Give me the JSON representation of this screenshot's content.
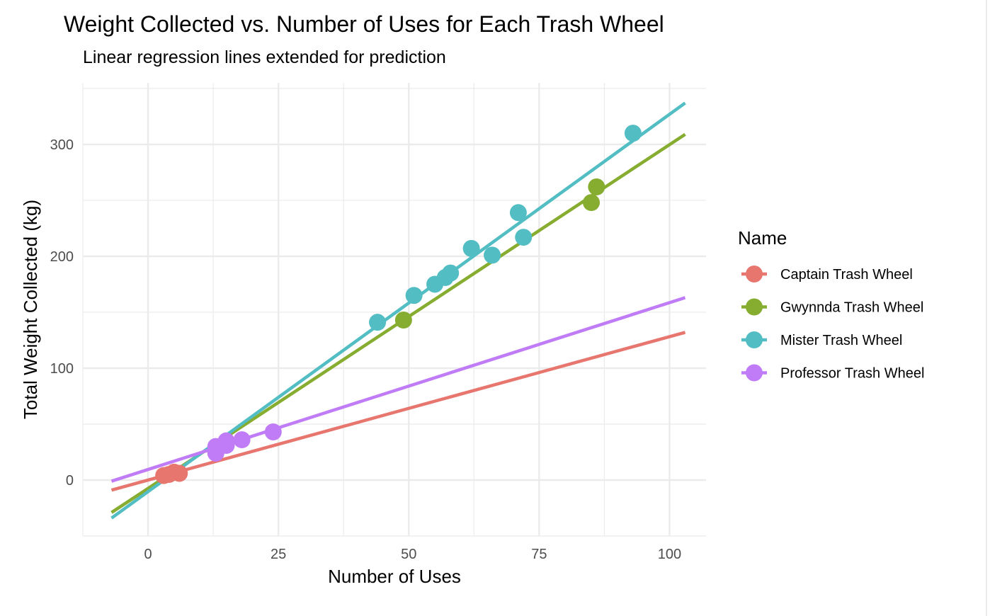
{
  "chart_data": {
    "type": "scatter",
    "title": "Weight Collected vs. Number of Uses for Each Trash Wheel",
    "subtitle": "Linear regression lines extended for prediction",
    "xlabel": "Number of Uses",
    "ylabel": "Total Weight Collected (kg)",
    "xlim": [
      -12.5,
      107
    ],
    "ylim": [
      -50,
      355
    ],
    "x_ticks": [
      0,
      25,
      50,
      75,
      100
    ],
    "y_ticks": [
      0,
      100,
      200,
      300
    ],
    "grid": true,
    "legend": {
      "title": "Name",
      "position": "right"
    },
    "series": [
      {
        "name": "Captain Trash Wheel",
        "color": "#E7766F",
        "points": [
          [
            3,
            4
          ],
          [
            4,
            5
          ],
          [
            5,
            7
          ],
          [
            6,
            6
          ]
        ],
        "regression": {
          "x": [
            -7,
            103
          ],
          "y": [
            -9,
            132
          ]
        }
      },
      {
        "name": "Gwynnda Trash Wheel",
        "color": "#86AC30",
        "points": [
          [
            49,
            143
          ],
          [
            85,
            248
          ],
          [
            86,
            262
          ]
        ],
        "regression": {
          "x": [
            -7,
            103
          ],
          "y": [
            -29,
            309
          ]
        }
      },
      {
        "name": "Mister Trash Wheel",
        "color": "#52BDC3",
        "points": [
          [
            44,
            141
          ],
          [
            51,
            165
          ],
          [
            55,
            175
          ],
          [
            57,
            181
          ],
          [
            58,
            185
          ],
          [
            62,
            207
          ],
          [
            66,
            201
          ],
          [
            71,
            239
          ],
          [
            72,
            217
          ],
          [
            93,
            310
          ]
        ],
        "regression": {
          "x": [
            -7,
            103
          ],
          "y": [
            -34,
            337
          ]
        }
      },
      {
        "name": "Professor Trash Wheel",
        "color": "#C07CF6",
        "points": [
          [
            13,
            24
          ],
          [
            13,
            30
          ],
          [
            15,
            31
          ],
          [
            15,
            35
          ],
          [
            18,
            36
          ],
          [
            24,
            43
          ]
        ],
        "regression": {
          "x": [
            -7,
            103
          ],
          "y": [
            -1,
            163
          ]
        }
      }
    ]
  }
}
